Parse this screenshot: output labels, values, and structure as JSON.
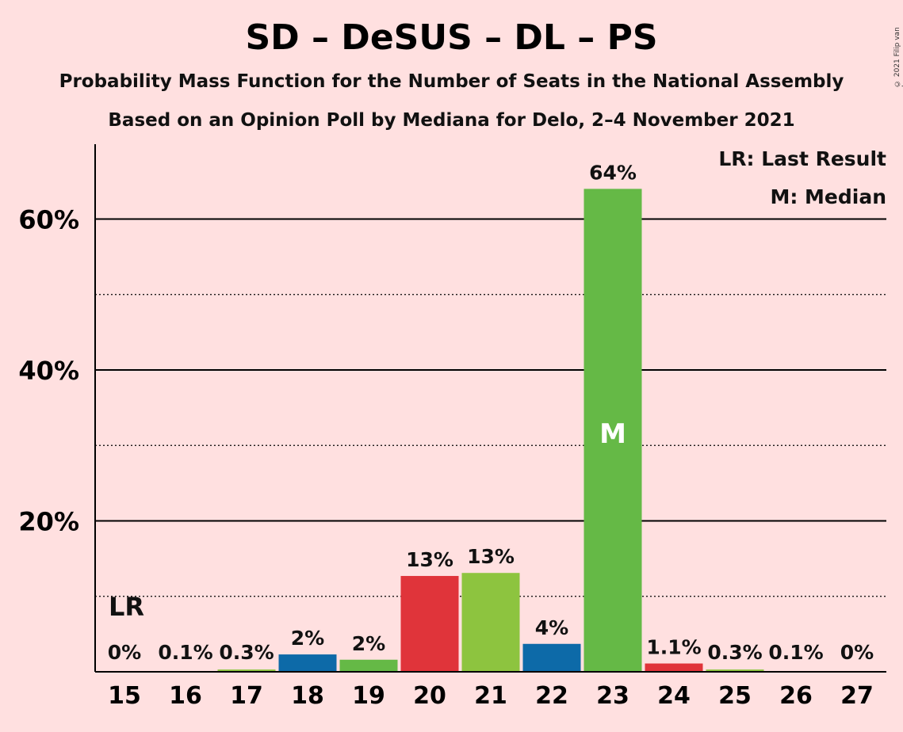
{
  "title": "SD – DeSUS – DL – PS",
  "subtitle1": "Probability Mass Function for the Number of Seats in the National Assembly",
  "subtitle2": "Based on an Opinion Poll by Mediana for Delo, 2–4 November 2021",
  "copyright": "© 2021 Filip van Laenen",
  "legend": {
    "last_result": "LR: Last Result",
    "median": "M: Median"
  },
  "markers": {
    "last_result_label": "LR",
    "last_result_seat": 15,
    "median_label": "M",
    "median_seat": 23
  },
  "colors": {
    "background": "#ffe0e0",
    "red": "#e0343a",
    "blue": "#0d6aa8",
    "green": "#65b946",
    "lightgreen": "#8dc43f"
  },
  "chart_data": {
    "type": "bar",
    "categories": [
      "15",
      "16",
      "17",
      "18",
      "19",
      "20",
      "21",
      "22",
      "23",
      "24",
      "25",
      "26",
      "27"
    ],
    "values": [
      0,
      0.1,
      0.3,
      2.3,
      1.6,
      12.7,
      13.1,
      3.7,
      64.0,
      1.1,
      0.3,
      0.1,
      0
    ],
    "value_labels": [
      "0%",
      "0.1%",
      "0.3%",
      "2%",
      "2%",
      "13%",
      "13%",
      "4%",
      "64%",
      "1.1%",
      "0.3%",
      "0.1%",
      "0%"
    ],
    "bar_colors": [
      "green",
      "green",
      "lightgreen",
      "blue",
      "green",
      "red",
      "lightgreen",
      "blue",
      "green",
      "red",
      "lightgreen",
      "green",
      "green"
    ],
    "ylim": [
      0,
      70
    ],
    "y_ticks_major": [
      20,
      40,
      60
    ],
    "y_tick_labels": [
      "20%",
      "40%",
      "60%"
    ],
    "y_ticks_minor": [
      10,
      30,
      50
    ],
    "grid": true
  }
}
